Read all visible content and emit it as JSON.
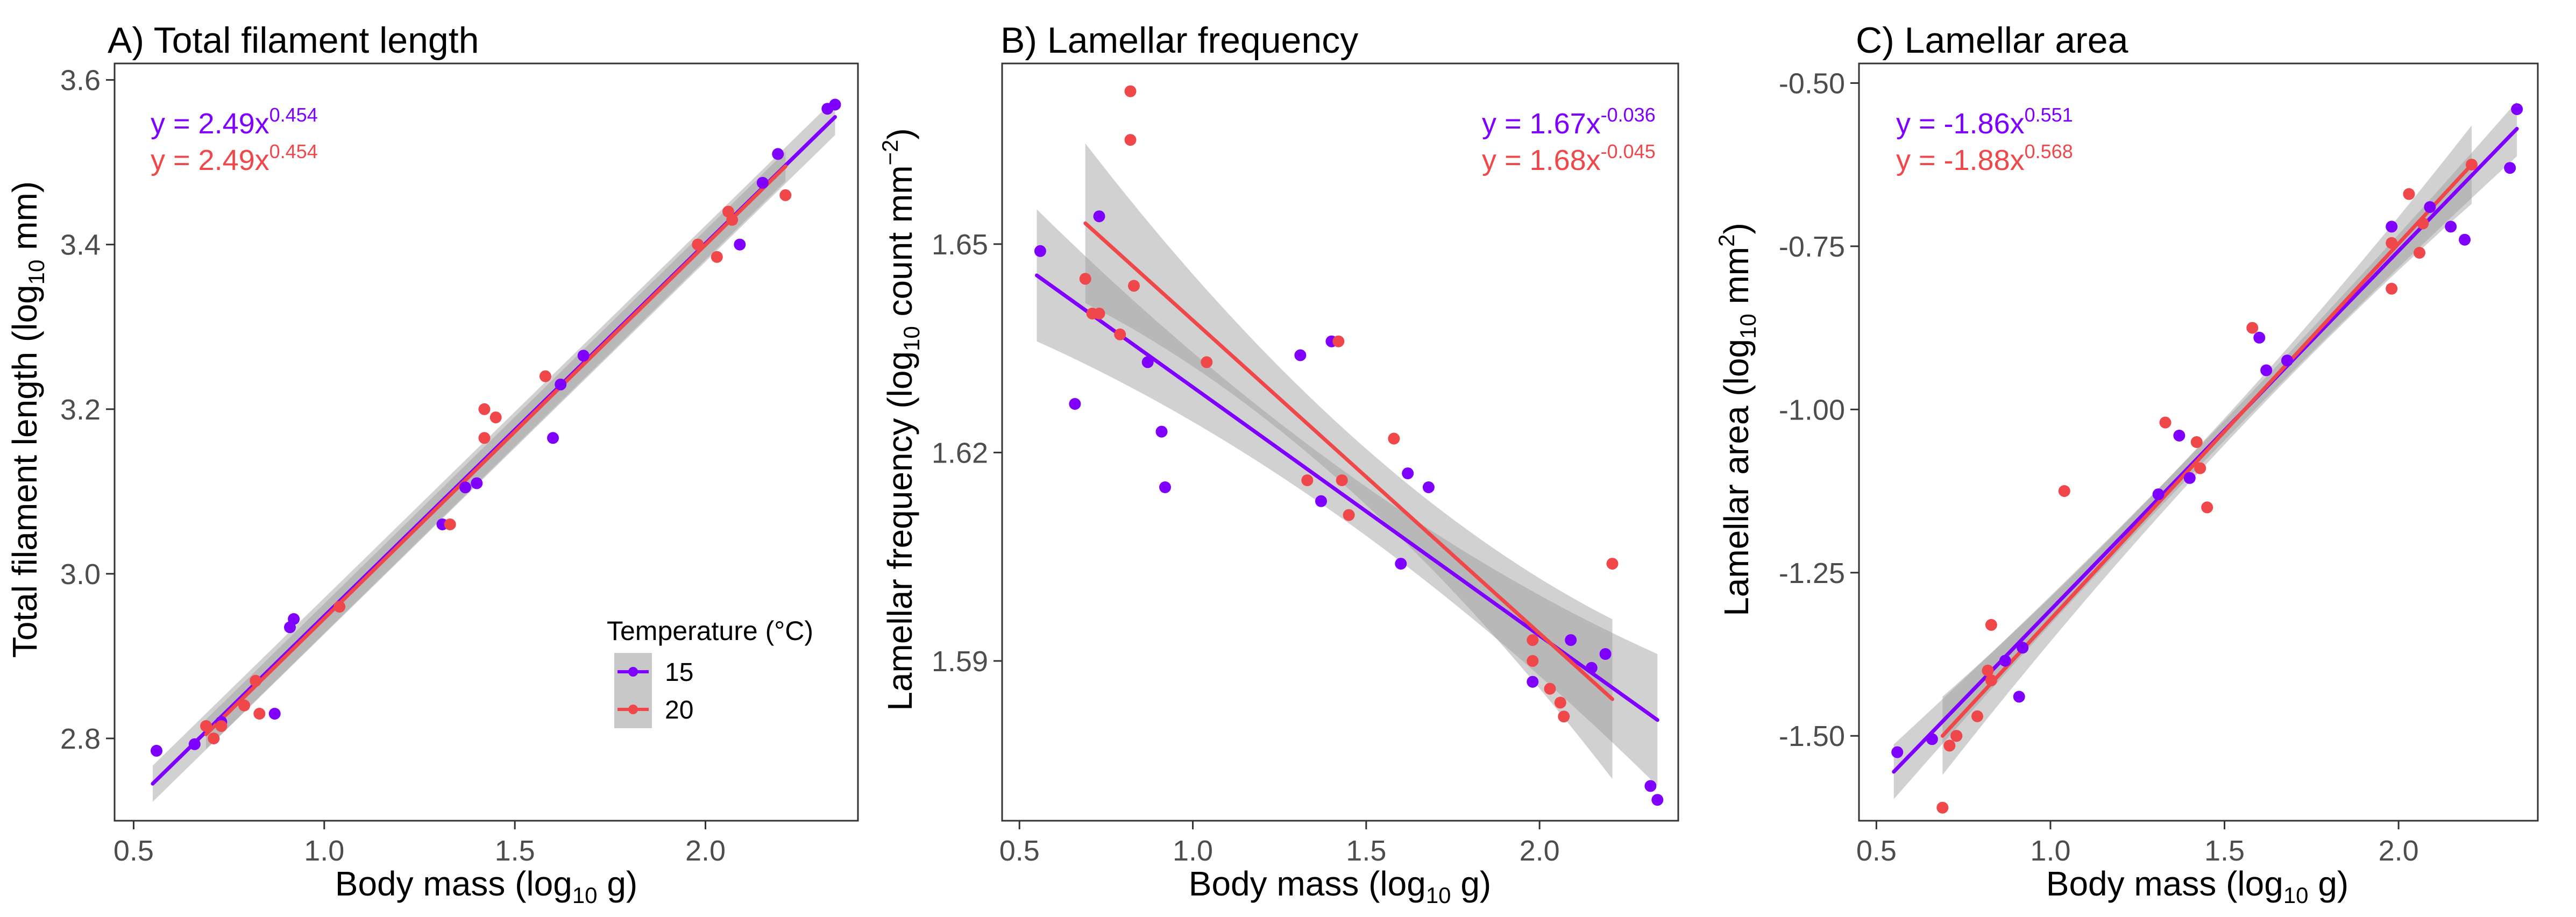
{
  "colors": {
    "series_15": "#7F00FF",
    "series_20": "#F0474B",
    "ribbon": "#9a9a9a",
    "axis": "#333333",
    "text": "#000000",
    "tick_text": "#4d4d4d"
  },
  "legend": {
    "title": "Temperature (°C)",
    "items": [
      {
        "label": "15",
        "color": "#7F00FF"
      },
      {
        "label": "20",
        "color": "#F0474B"
      }
    ],
    "panel": 0
  },
  "chart_data": [
    {
      "type": "scatter",
      "title": "A) Total filament length",
      "xlabel": {
        "pre": "Body mass (log",
        "sub": "10",
        "post": " g)"
      },
      "ylabel": {
        "pre": "Total filament length (log",
        "sub": "10",
        "post": " mm)"
      },
      "xlim": [
        0.45,
        2.4
      ],
      "ylim": [
        2.7,
        3.62
      ],
      "xticks": [
        0.5,
        1.0,
        1.5,
        2.0
      ],
      "xtick_labels": [
        "0.5",
        "1.0",
        "1.5",
        "2.0"
      ],
      "yticks": [
        2.8,
        3.0,
        3.2,
        3.4,
        3.6
      ],
      "ytick_labels": [
        "2.8",
        "3.0",
        "3.2",
        "3.4",
        "3.6"
      ],
      "equations": [
        {
          "base": "y = 2.49x",
          "exp": "0.454",
          "color": "#7F00FF"
        },
        {
          "base": "y = 2.49x",
          "exp": "0.454",
          "color": "#F0474B"
        }
      ],
      "series": [
        {
          "name": "15",
          "color": "#7F00FF",
          "points": [
            [
              0.56,
              2.785
            ],
            [
              0.66,
              2.793
            ],
            [
              0.73,
              2.82
            ],
            [
              0.87,
              2.83
            ],
            [
              0.91,
              2.935
            ],
            [
              0.92,
              2.945
            ],
            [
              1.31,
              3.06
            ],
            [
              1.37,
              3.105
            ],
            [
              1.4,
              3.11
            ],
            [
              1.6,
              3.165
            ],
            [
              1.62,
              3.23
            ],
            [
              1.68,
              3.265
            ],
            [
              2.09,
              3.4
            ],
            [
              2.15,
              3.475
            ],
            [
              2.19,
              3.51
            ],
            [
              2.32,
              3.565
            ],
            [
              2.34,
              3.57
            ]
          ],
          "fit": {
            "x": [
              0.55,
              2.34
            ],
            "y": [
              2.745,
              3.555
            ],
            "se": 0.022
          }
        },
        {
          "name": "20",
          "color": "#F0474B",
          "points": [
            [
              0.69,
              2.815
            ],
            [
              0.71,
              2.8
            ],
            [
              0.73,
              2.815
            ],
            [
              0.79,
              2.84
            ],
            [
              0.82,
              2.87
            ],
            [
              0.83,
              2.83
            ],
            [
              1.04,
              2.96
            ],
            [
              1.33,
              3.06
            ],
            [
              1.42,
              3.2
            ],
            [
              1.42,
              3.165
            ],
            [
              1.45,
              3.19
            ],
            [
              1.58,
              3.24
            ],
            [
              1.98,
              3.4
            ],
            [
              2.03,
              3.385
            ],
            [
              2.06,
              3.44
            ],
            [
              2.07,
              3.43
            ],
            [
              2.21,
              3.46
            ]
          ],
          "fit": {
            "x": [
              0.69,
              2.21
            ],
            "y": [
              2.805,
              3.495
            ],
            "se": 0.018
          }
        }
      ]
    },
    {
      "type": "scatter",
      "title": "B) Lamellar frequency",
      "xlabel": {
        "pre": "Body mass (log",
        "sub": "10",
        "post": " g)"
      },
      "ylabel": {
        "pre": "Lamellar frequency (log",
        "sub": "10",
        "post": " count mm",
        "sup": "−2",
        "close": ")"
      },
      "xlim": [
        0.45,
        2.4
      ],
      "ylim": [
        1.567,
        1.676
      ],
      "xticks": [
        0.5,
        1.0,
        1.5,
        2.0
      ],
      "xtick_labels": [
        "0.5",
        "1.0",
        "1.5",
        "2.0"
      ],
      "yticks": [
        1.59,
        1.62,
        1.65
      ],
      "ytick_labels": [
        "1.59",
        "1.62",
        "1.65"
      ],
      "equations": [
        {
          "base": "y = 1.67x",
          "exp": "-0.036",
          "color": "#7F00FF"
        },
        {
          "base": "y = 1.68x",
          "exp": "-0.045",
          "color": "#F0474B"
        }
      ],
      "series": [
        {
          "name": "15",
          "color": "#7F00FF",
          "points": [
            [
              0.56,
              1.649
            ],
            [
              0.66,
              1.627
            ],
            [
              0.73,
              1.654
            ],
            [
              0.87,
              1.633
            ],
            [
              0.91,
              1.623
            ],
            [
              0.92,
              1.615
            ],
            [
              1.31,
              1.634
            ],
            [
              1.37,
              1.613
            ],
            [
              1.4,
              1.636
            ],
            [
              1.6,
              1.604
            ],
            [
              1.62,
              1.617
            ],
            [
              1.68,
              1.615
            ],
            [
              1.98,
              1.587
            ],
            [
              2.09,
              1.593
            ],
            [
              2.15,
              1.589
            ],
            [
              2.19,
              1.591
            ],
            [
              2.32,
              1.572
            ],
            [
              2.34,
              1.57
            ]
          ],
          "fit": {
            "x": [
              0.55,
              2.34
            ],
            "y": [
              1.6455,
              1.5815
            ],
            "se_ends": 0.0095,
            "se_mid": 0.0035
          }
        },
        {
          "name": "20",
          "color": "#F0474B",
          "points": [
            [
              0.69,
              1.645
            ],
            [
              0.71,
              1.64
            ],
            [
              0.73,
              1.64
            ],
            [
              0.79,
              1.637
            ],
            [
              0.82,
              1.672
            ],
            [
              0.82,
              1.665
            ],
            [
              0.83,
              1.644
            ],
            [
              1.04,
              1.633
            ],
            [
              1.33,
              1.616
            ],
            [
              1.42,
              1.636
            ],
            [
              1.43,
              1.616
            ],
            [
              1.45,
              1.611
            ],
            [
              1.58,
              1.622
            ],
            [
              1.98,
              1.593
            ],
            [
              1.98,
              1.59
            ],
            [
              2.03,
              1.586
            ],
            [
              2.06,
              1.584
            ],
            [
              2.07,
              1.582
            ],
            [
              2.21,
              1.604
            ]
          ],
          "fit": {
            "x": [
              0.69,
              2.21
            ],
            "y": [
              1.653,
              1.5845
            ],
            "se_ends": 0.0115,
            "se_mid": 0.004
          }
        }
      ]
    },
    {
      "type": "scatter",
      "title": "C) Lamellar area",
      "xlabel": {
        "pre": "Body mass (log",
        "sub": "10",
        "post": " g)"
      },
      "ylabel": {
        "pre": "Lamellar area (log",
        "sub": "10",
        "post": " mm",
        "sup": "2",
        "close": ")"
      },
      "xlim": [
        0.45,
        2.4
      ],
      "ylim": [
        -1.63,
        -0.47
      ],
      "xticks": [
        0.5,
        1.0,
        1.5,
        2.0
      ],
      "xtick_labels": [
        "0.5",
        "1.0",
        "1.5",
        "2.0"
      ],
      "yticks": [
        -1.5,
        -1.25,
        -1.0,
        -0.75,
        -0.5
      ],
      "ytick_labels": [
        "-1.50",
        "-1.25",
        "-1.00",
        "-0.75",
        "-0.50"
      ],
      "equations": [
        {
          "base": "y = -1.86x",
          "exp": "0.551",
          "color": "#7F00FF"
        },
        {
          "base": "y = -1.88x",
          "exp": "0.568",
          "color": "#F0474B"
        }
      ],
      "series": [
        {
          "name": "15",
          "color": "#7F00FF",
          "points": [
            [
              0.56,
              -1.525
            ],
            [
              0.66,
              -1.505
            ],
            [
              0.73,
              -1.5
            ],
            [
              0.87,
              -1.385
            ],
            [
              0.91,
              -1.44
            ],
            [
              0.92,
              -1.365
            ],
            [
              1.31,
              -1.13
            ],
            [
              1.37,
              -1.04
            ],
            [
              1.4,
              -1.105
            ],
            [
              1.6,
              -0.89
            ],
            [
              1.62,
              -0.94
            ],
            [
              1.68,
              -0.925
            ],
            [
              1.98,
              -0.72
            ],
            [
              2.09,
              -0.69
            ],
            [
              2.15,
              -0.72
            ],
            [
              2.19,
              -0.74
            ],
            [
              2.32,
              -0.63
            ],
            [
              2.34,
              -0.54
            ]
          ],
          "fit": {
            "x": [
              0.55,
              2.34
            ],
            "y": [
              -1.555,
              -0.57
            ],
            "se_ends": 0.042,
            "se_mid": 0.015
          }
        },
        {
          "name": "20",
          "color": "#F0474B",
          "points": [
            [
              0.69,
              -1.61
            ],
            [
              0.71,
              -1.515
            ],
            [
              0.73,
              -1.5
            ],
            [
              0.79,
              -1.47
            ],
            [
              0.82,
              -1.4
            ],
            [
              0.83,
              -1.415
            ],
            [
              0.83,
              -1.33
            ],
            [
              1.04,
              -1.125
            ],
            [
              1.33,
              -1.02
            ],
            [
              1.42,
              -1.05
            ],
            [
              1.43,
              -1.09
            ],
            [
              1.45,
              -1.15
            ],
            [
              1.58,
              -0.875
            ],
            [
              1.98,
              -0.745
            ],
            [
              1.98,
              -0.815
            ],
            [
              2.03,
              -0.67
            ],
            [
              2.06,
              -0.76
            ],
            [
              2.07,
              -0.715
            ],
            [
              2.21,
              -0.625
            ]
          ],
          "fit": {
            "x": [
              0.69,
              2.21
            ],
            "y": [
              -1.5,
              -0.625
            ],
            "se_ends": 0.06,
            "se_mid": 0.02
          }
        }
      ]
    }
  ]
}
